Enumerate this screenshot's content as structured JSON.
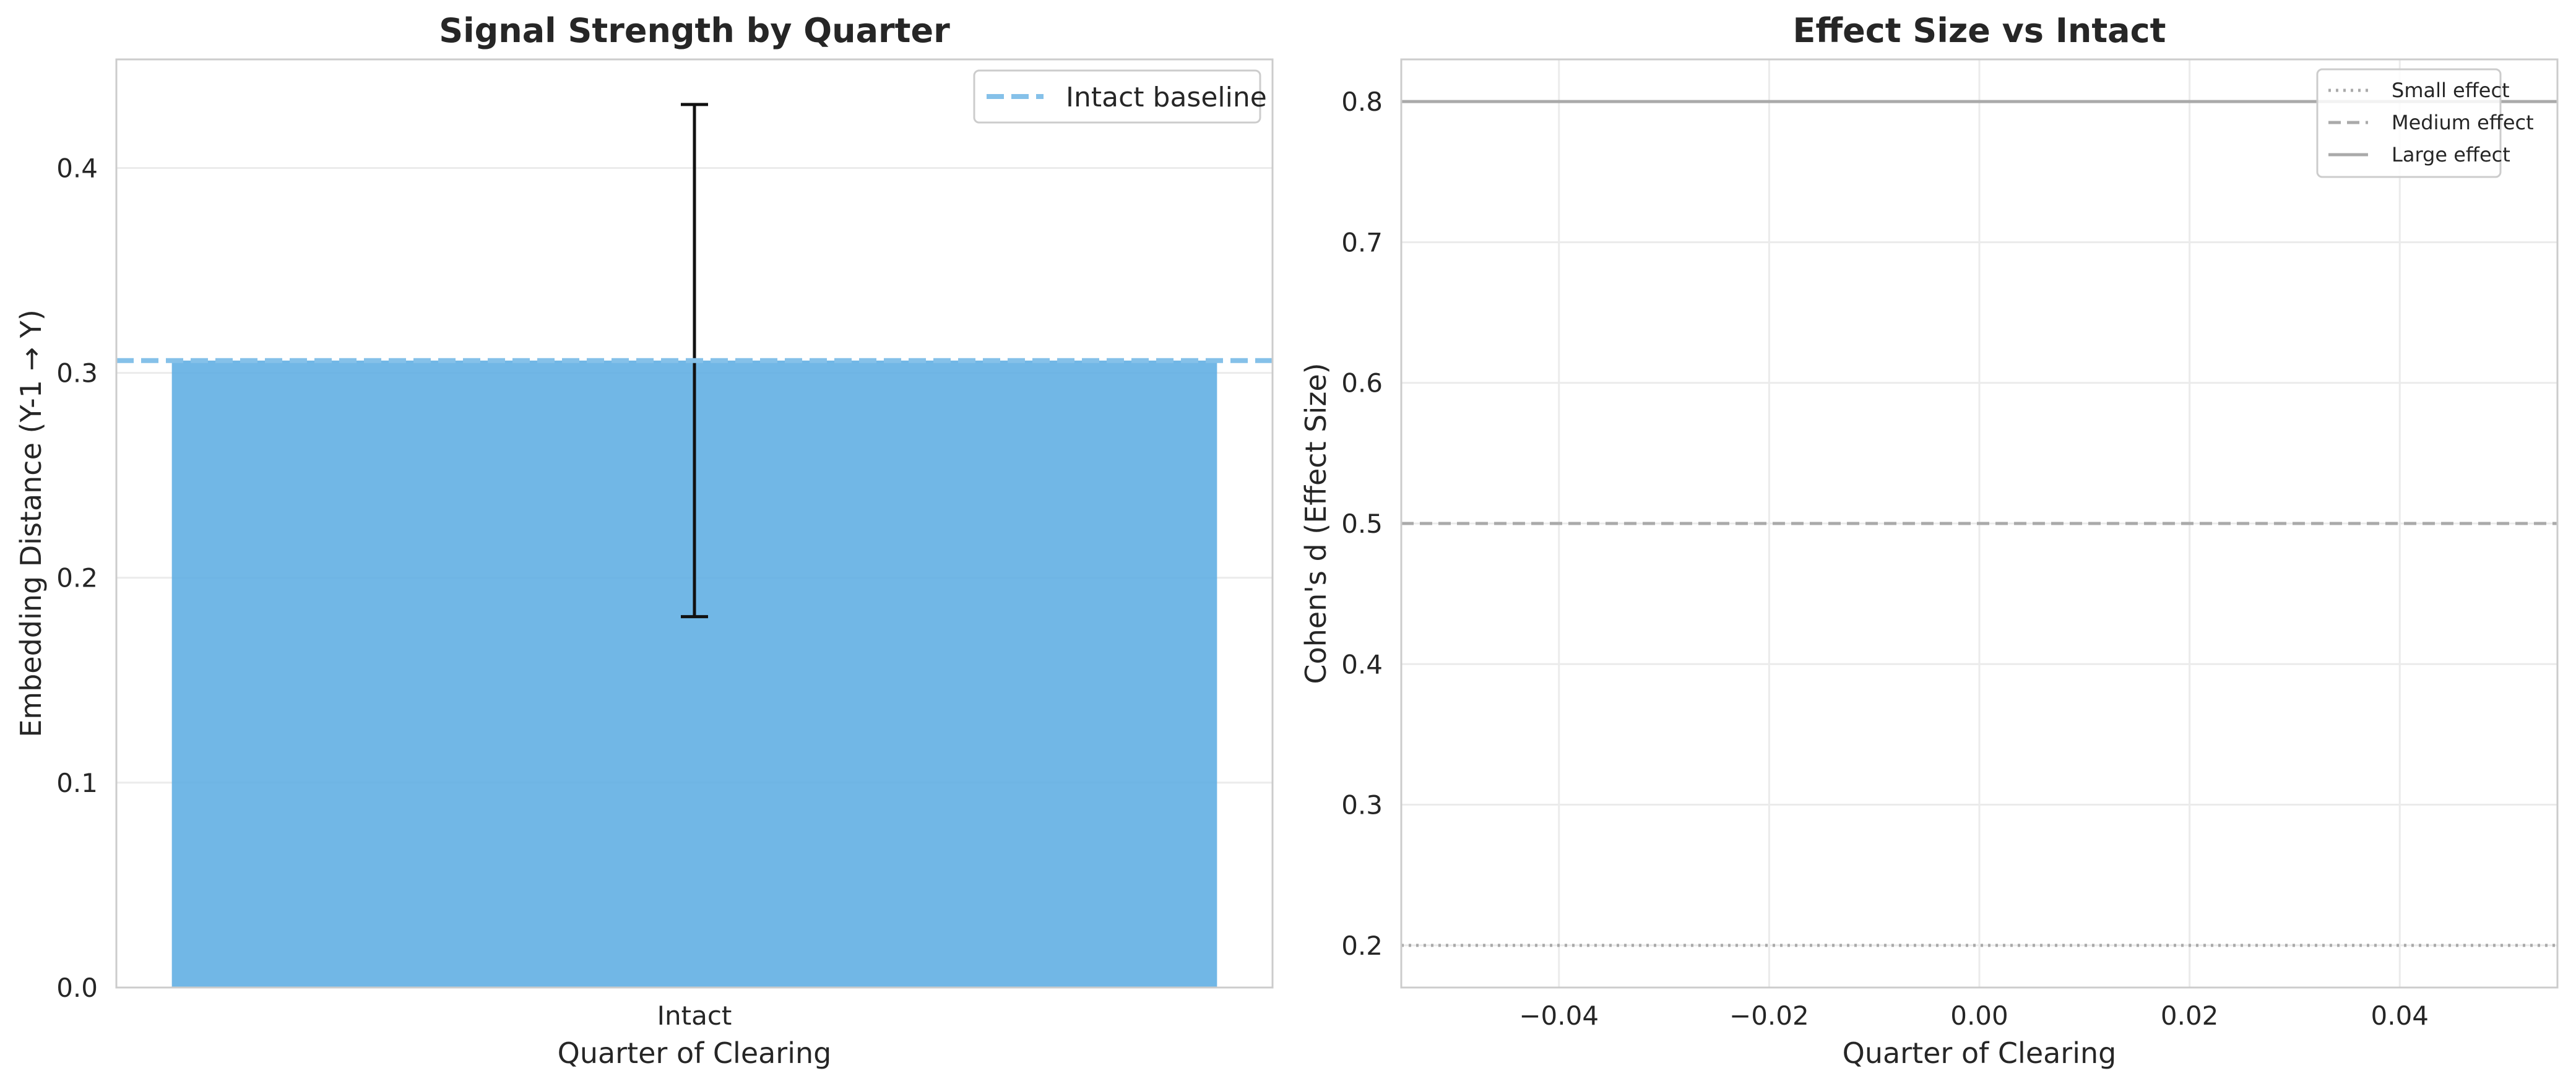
{
  "chart_data": [
    {
      "type": "bar",
      "title": "Signal Strength by Quarter",
      "xlabel": "Quarter of Clearing",
      "ylabel": "Embedding Distance (Y-1 → Y)",
      "categories": [
        "Intact"
      ],
      "values": [
        0.306
      ],
      "error": [
        0.125
      ],
      "bar_color": "#5DADE2",
      "ylim": [
        0,
        0.453
      ],
      "yticks": [
        0.0,
        0.1,
        0.2,
        0.3,
        0.4
      ],
      "ytick_labels": [
        "0.0",
        "0.1",
        "0.2",
        "0.3",
        "0.4"
      ],
      "grid": true,
      "legend_position": "top-right",
      "reference_lines": [
        {
          "name": "Intact baseline",
          "y": 0.306,
          "style": "dashed",
          "color": "#85C1E9"
        }
      ]
    },
    {
      "type": "line",
      "title": "Effect Size vs Intact",
      "xlabel": "Quarter of Clearing",
      "ylabel": "Cohen's d (Effect Size)",
      "xlim": [
        -0.055,
        0.055
      ],
      "ylim": [
        0.17,
        0.83
      ],
      "xticks": [
        -0.04,
        -0.02,
        0.0,
        0.02,
        0.04
      ],
      "xtick_labels": [
        "−0.04",
        "−0.02",
        "0.00",
        "0.02",
        "0.04"
      ],
      "yticks": [
        0.2,
        0.3,
        0.4,
        0.5,
        0.6,
        0.7,
        0.8
      ],
      "ytick_labels": [
        "0.2",
        "0.3",
        "0.4",
        "0.5",
        "0.6",
        "0.7",
        "0.8"
      ],
      "grid": true,
      "legend_position": "top-right",
      "reference_lines": [
        {
          "name": "Small effect",
          "y": 0.2,
          "style": "dotted",
          "color": "#AAAAAA"
        },
        {
          "name": "Medium effect",
          "y": 0.5,
          "style": "dashed",
          "color": "#AAAAAA"
        },
        {
          "name": "Large effect",
          "y": 0.8,
          "style": "solid",
          "color": "#AAAAAA"
        }
      ]
    }
  ]
}
